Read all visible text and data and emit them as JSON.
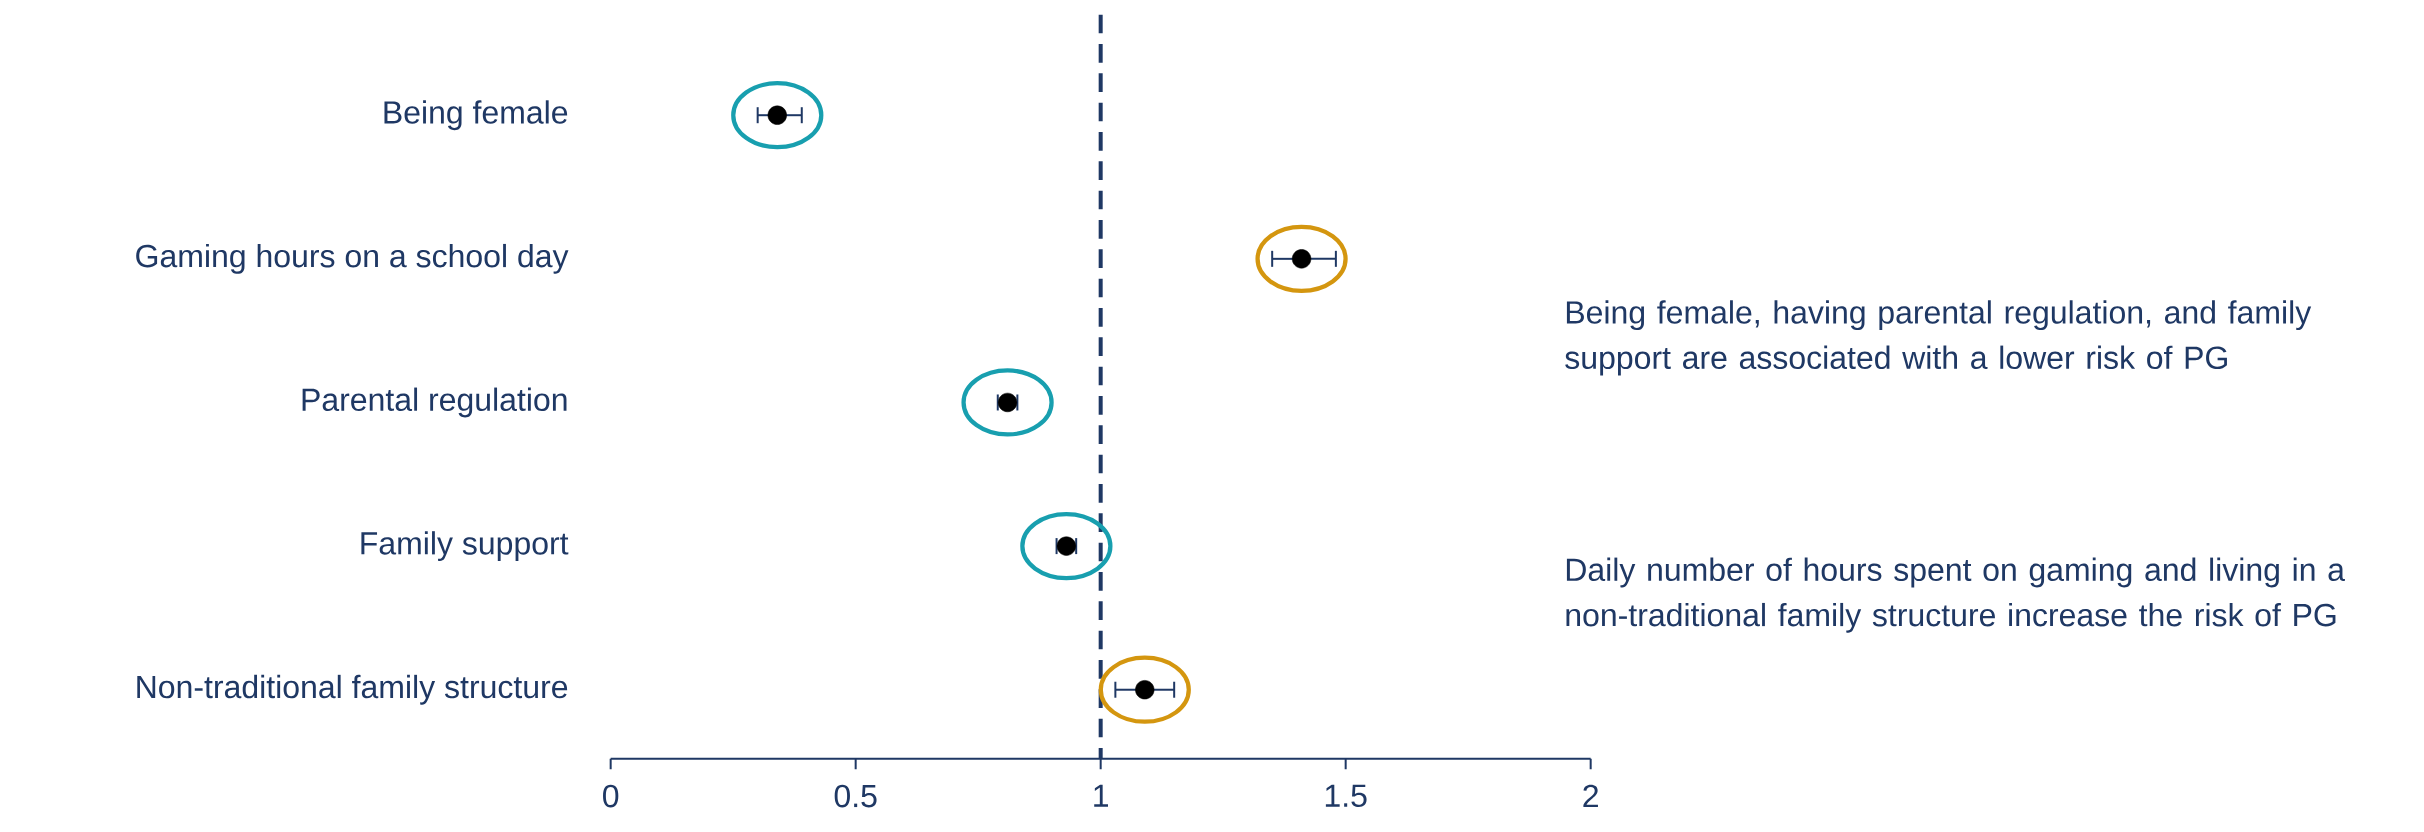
{
  "chart_data": {
    "type": "scatter",
    "orientation": "horizontal",
    "categories": [
      "Being female",
      "Gaming hours on a school day",
      "Parental regulation",
      "Family support",
      "Non-traditional family structure"
    ],
    "xlim": [
      0,
      2
    ],
    "xticks": [
      0,
      0.5,
      1,
      1.5,
      2
    ],
    "ref_lines": [
      {
        "axis": "x",
        "value": 1,
        "color": "#1f3864",
        "line_style": "dashed"
      }
    ],
    "annotations": [
      "Being female, having parental regulation, and family support are associated with a lower risk of PG",
      "Daily number of hours spent on gaming and living in a non-traditional family structure increase the risk of PG"
    ],
    "series": [
      {
        "type": "scatter",
        "color": "#000000",
        "values": [
          0.34,
          1.41,
          0.81,
          0.93,
          1.09
        ],
        "errors": [
          [
            0.3,
            0.39
          ],
          [
            1.35,
            1.48
          ],
          [
            0.79,
            0.83
          ],
          [
            0.91,
            0.95
          ],
          [
            1.03,
            1.15
          ]
        ]
      }
    ]
  }
}
